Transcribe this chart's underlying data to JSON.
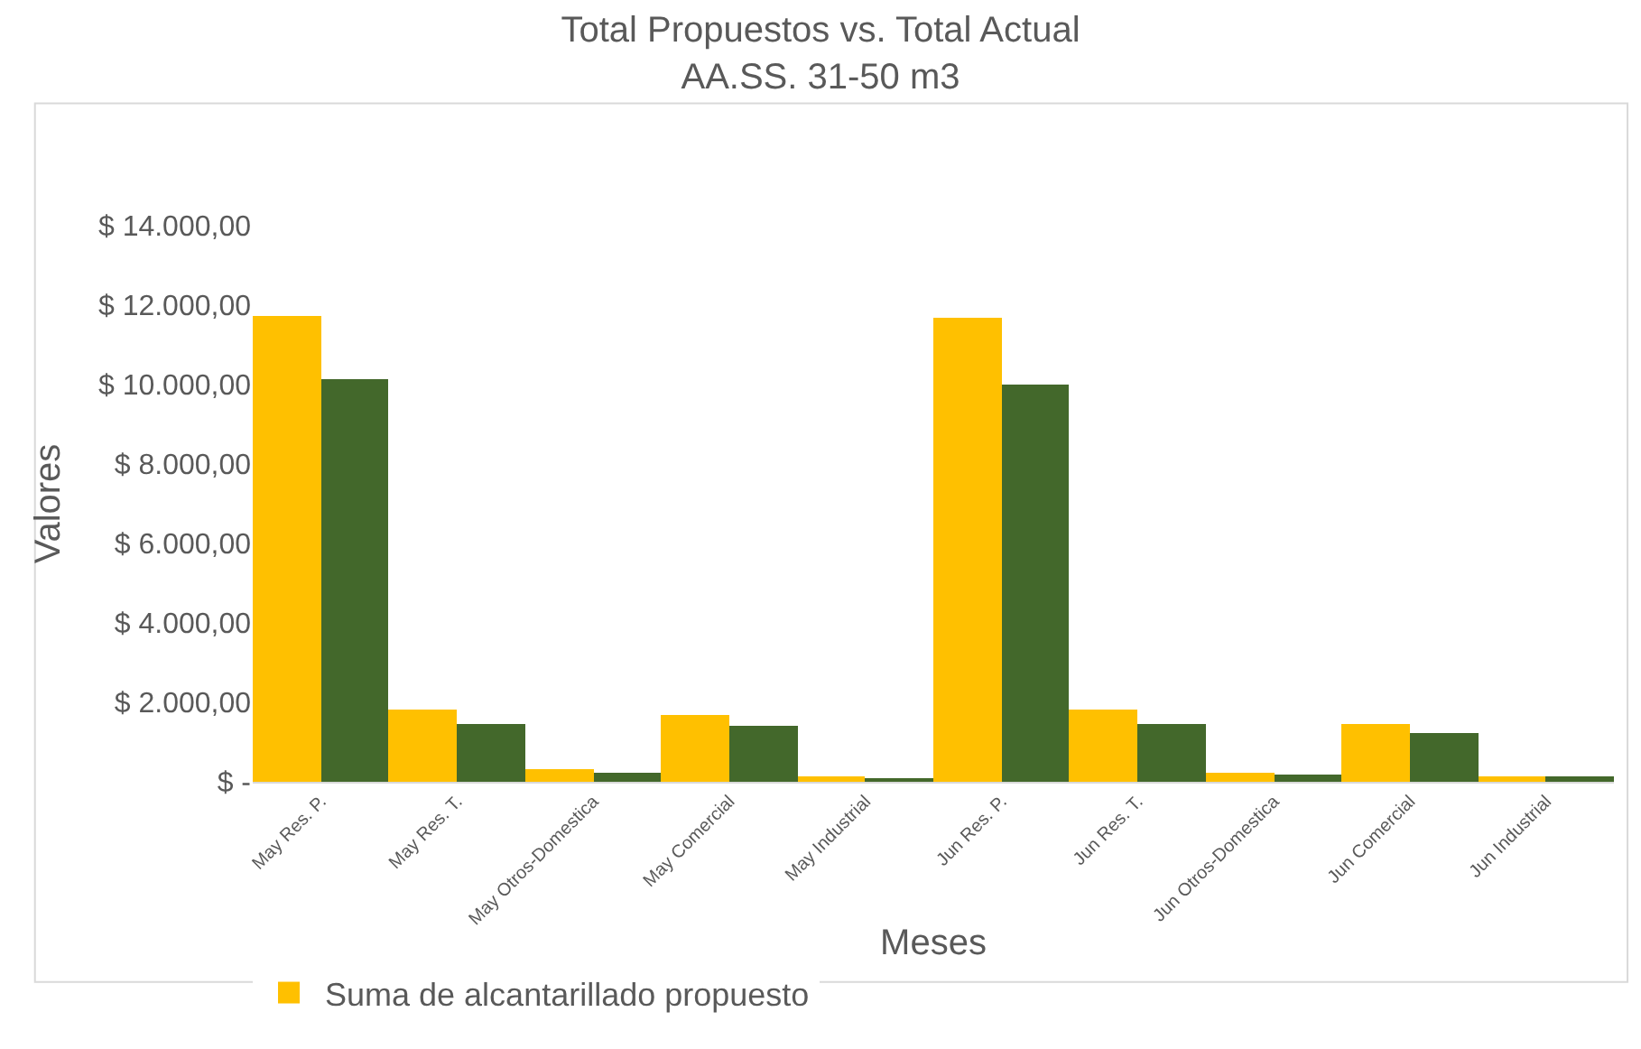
{
  "chart_data": {
    "type": "bar",
    "title": "Total Propuestos vs. Total Actual\nAA.SS. 31-50 m3",
    "xlabel": "Meses",
    "ylabel": "Valores",
    "categories": [
      "May Res. P.",
      "May Res. T.",
      "May Otros-Domestica",
      "May Comercial",
      "May Industrial",
      "Jun Res. P.",
      "Jun Res. T.",
      "Jun Otros-Domestica",
      "Jun Comercial",
      "Jun Industrial"
    ],
    "series": [
      {
        "name": "Suma de alcantarillado propuesto",
        "color": "#ffc000",
        "values": [
          11730,
          1800,
          300,
          1680,
          140,
          11680,
          1800,
          240,
          1440,
          140
        ]
      },
      {
        "color": "#43682b",
        "values": [
          10120,
          1440,
          220,
          1400,
          100,
          10000,
          1440,
          180,
          1220,
          120
        ]
      }
    ],
    "ylim": [
      0,
      14000
    ],
    "yticks": [
      {
        "value": 0,
        "label": "$ -"
      },
      {
        "value": 2000,
        "label": "$ 2.000,00"
      },
      {
        "value": 4000,
        "label": "$ 4.000,00"
      },
      {
        "value": 6000,
        "label": "$ 6.000,00"
      },
      {
        "value": 8000,
        "label": "$ 8.000,00"
      },
      {
        "value": 10000,
        "label": "$ 10.000,00"
      },
      {
        "value": 12000,
        "label": "$ 12.000,00"
      },
      {
        "value": 14000,
        "label": "$ 14.000,00"
      }
    ],
    "grid": false,
    "legend": "bottom left"
  }
}
